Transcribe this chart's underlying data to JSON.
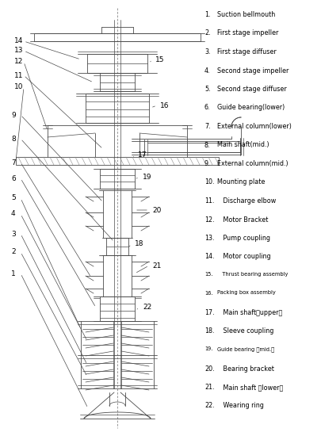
{
  "bg_color": "#ffffff",
  "lc": "#4a4a4a",
  "fig_width": 4.05,
  "fig_height": 5.5,
  "dpi": 100,
  "legend": [
    [
      "1.",
      "Suction bellmouth"
    ],
    [
      "2.",
      "First stage impeller"
    ],
    [
      "3.",
      "First stage diffuser"
    ],
    [
      "4.",
      "Second stage impeller"
    ],
    [
      "5.",
      "Second stage diffuser"
    ],
    [
      "6.",
      "Guide bearing(lower)"
    ],
    [
      "7.",
      "External column(lower)"
    ],
    [
      "8.",
      "Main shaft(mid.)"
    ],
    [
      "9.",
      "External column(mid.)"
    ],
    [
      "10.",
      "Mounting plate"
    ],
    [
      "11.",
      "   Discharge elbow"
    ],
    [
      "12.",
      "   Motor Bracket"
    ],
    [
      "13.",
      "   Pump coupling"
    ],
    [
      "14.",
      "   Motor coupling"
    ],
    [
      "15.",
      "   Thrust bearing assembly"
    ],
    [
      "16.",
      "Packing box assembly"
    ],
    [
      "17.",
      "   Main shaft（upper）"
    ],
    [
      "18.",
      "   Sleeve coupling"
    ],
    [
      "19.",
      "Guide bearing （mid.）"
    ],
    [
      "20.",
      "   Bearing bracket"
    ],
    [
      "21.",
      "   Main shaft （lower）"
    ],
    [
      "22.",
      "   Wearing ring"
    ]
  ]
}
